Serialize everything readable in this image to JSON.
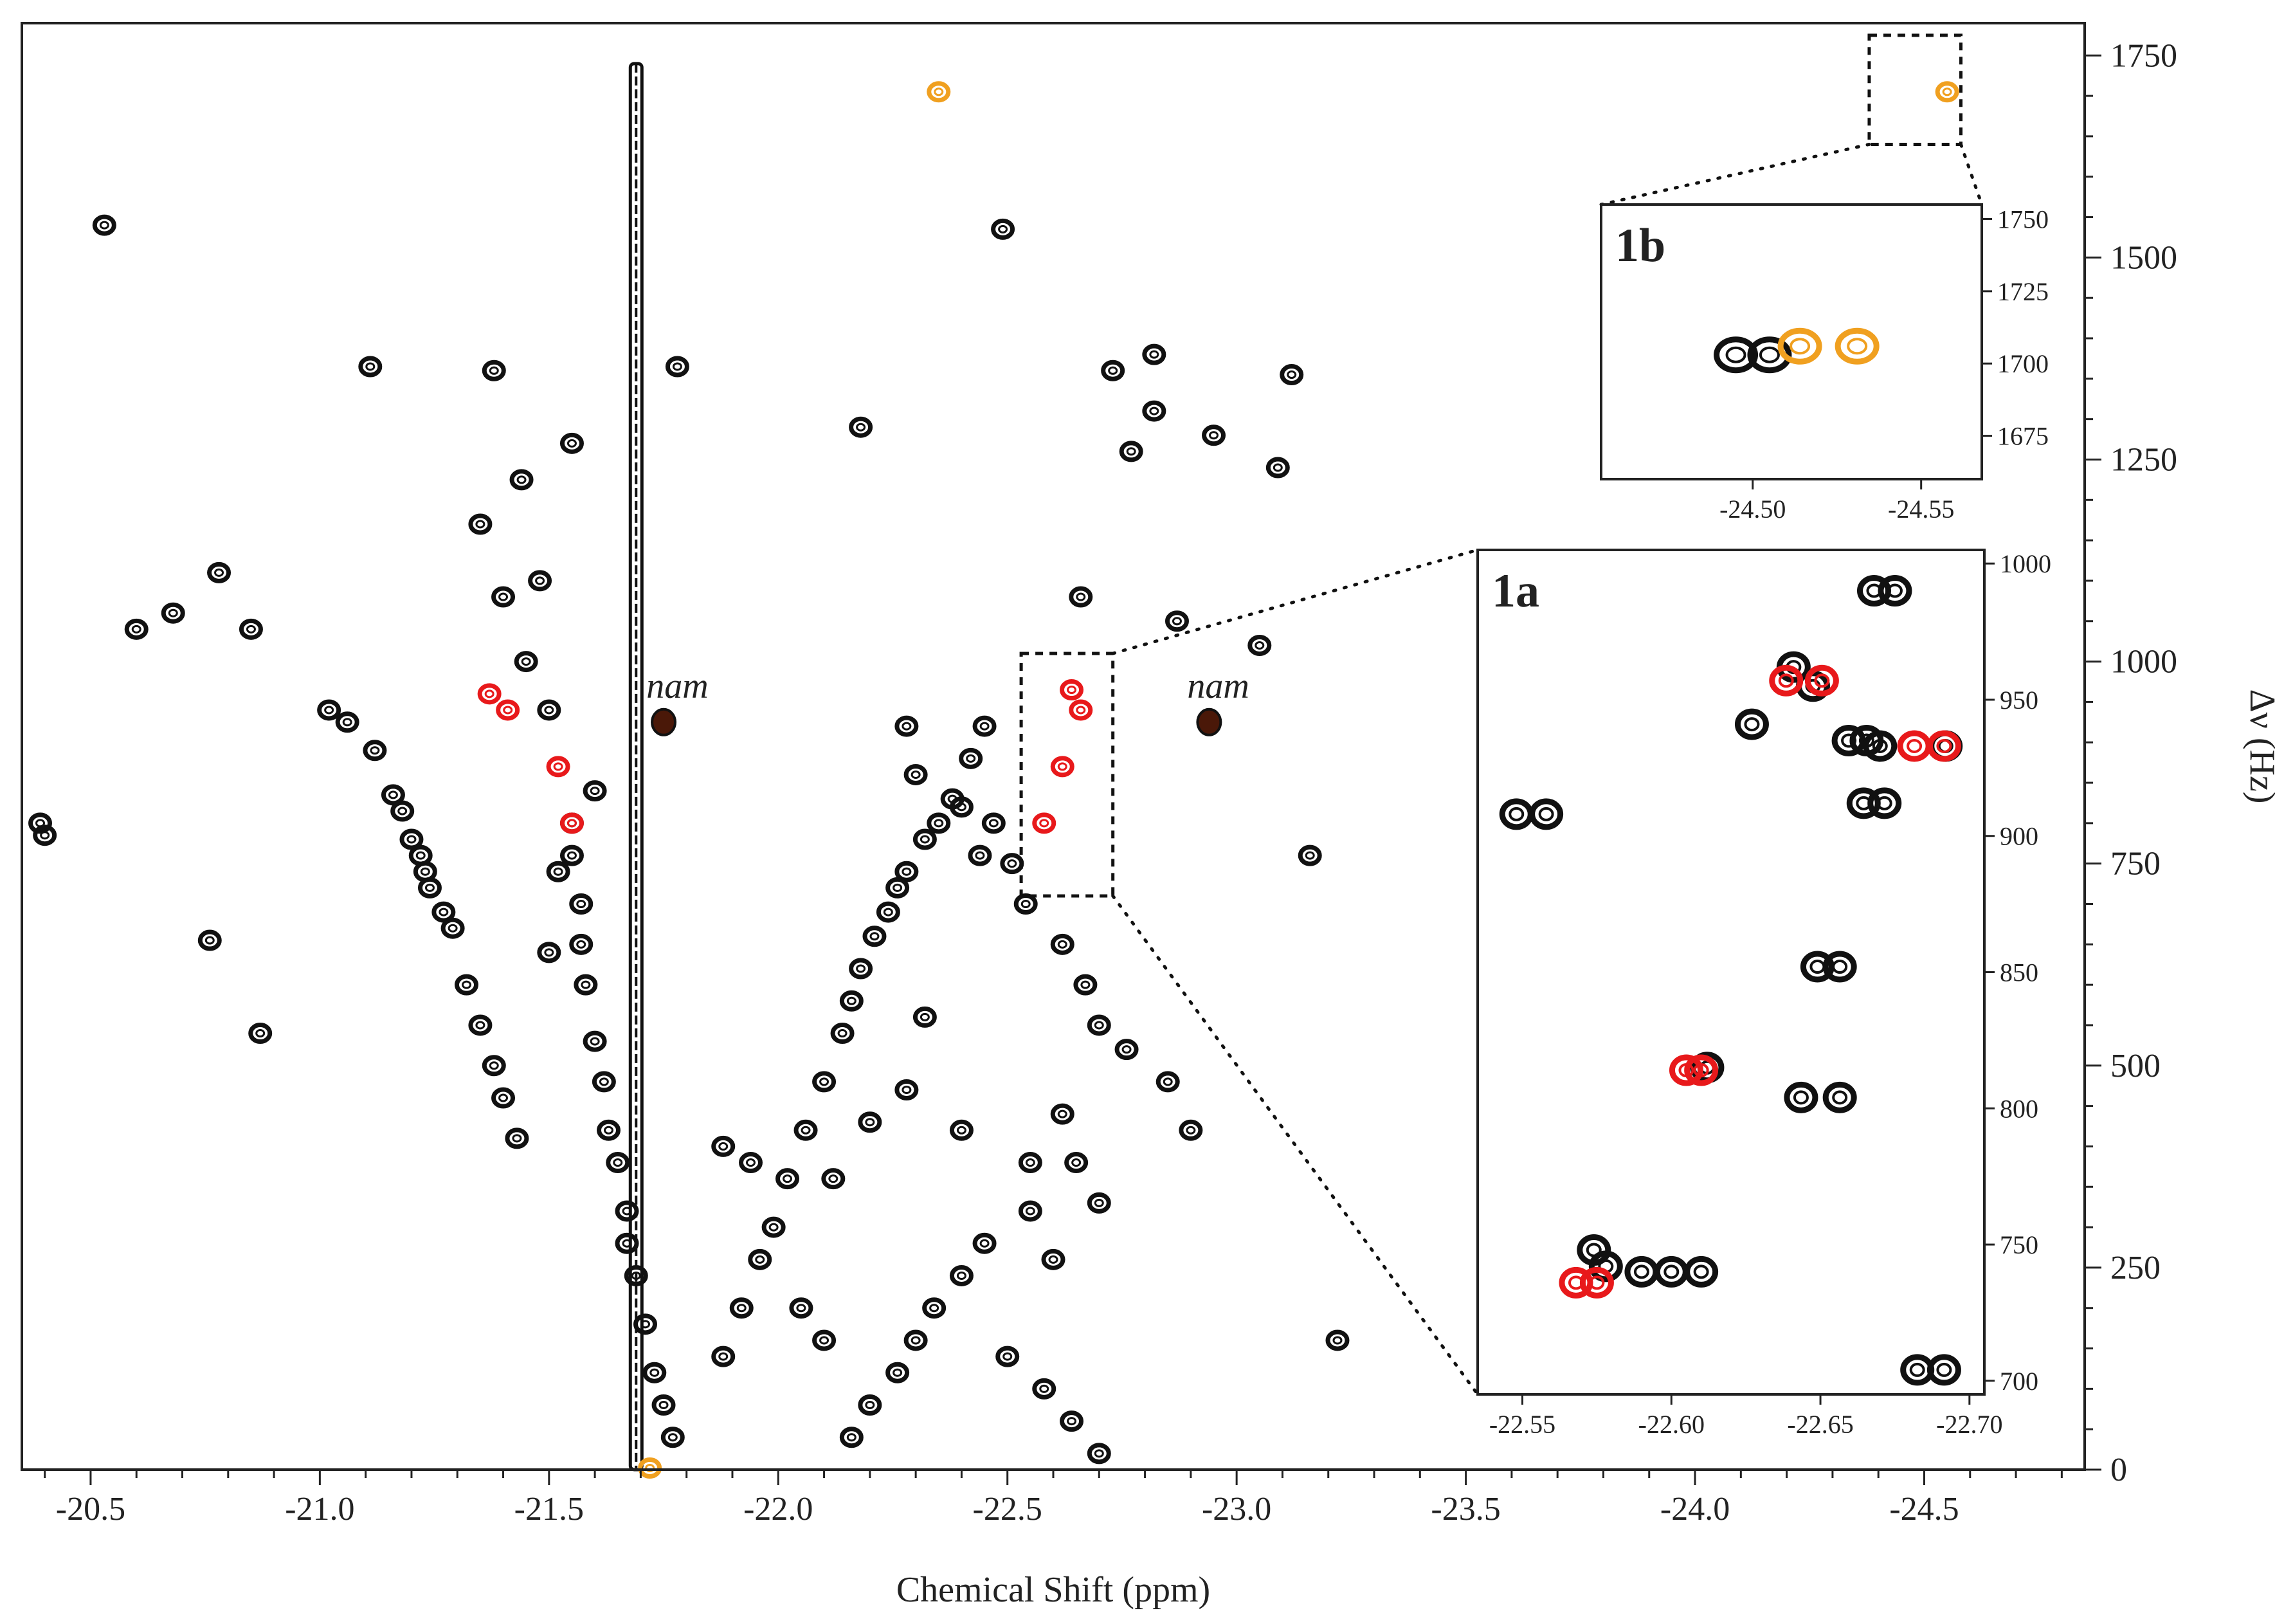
{
  "chart_data": {
    "type": "scatter",
    "subtype": "2D NMR contour map",
    "xlabel": "Chemical Shift (ppm)",
    "ylabel": "Δν (Hz)",
    "xlim": [
      -20.35,
      -24.85
    ],
    "ylim": [
      0,
      1790
    ],
    "xticks": [
      -20.5,
      -21.0,
      -21.5,
      -22.0,
      -22.5,
      -23.0,
      -23.5,
      -24.0,
      -24.5
    ],
    "xtick_labels": [
      "-20.5",
      "-21.0",
      "-21.5",
      "-22.0",
      "-22.5",
      "-23.0",
      "-23.5",
      "-24.0",
      "-24.5"
    ],
    "yticks": [
      0,
      250,
      500,
      750,
      1000,
      1250,
      1500,
      1750
    ],
    "ytick_labels": [
      "0",
      "250",
      "500",
      "750",
      "1000",
      "1250",
      "1500",
      "1750"
    ],
    "colors": {
      "axis": "#222222",
      "peak": "#111111",
      "highlight_red": "#e8191b",
      "highlight_orange": "#f0a020"
    },
    "annotations": [
      {
        "text": "nam",
        "x": -21.78,
        "y": 955
      },
      {
        "text": "nam",
        "x": -22.96,
        "y": 955
      }
    ],
    "ridge": {
      "x": -21.69,
      "y_from": 0,
      "y_to": 1740
    },
    "zoom_boxes": [
      {
        "target": "1a",
        "x": [
          -22.53,
          -22.73
        ],
        "y": [
          710,
          1010
        ]
      },
      {
        "target": "1b",
        "x": [
          -24.38,
          -24.58
        ],
        "y": [
          1640,
          1775
        ]
      }
    ],
    "series": [
      {
        "name": "peaks",
        "color": "#111111",
        "points": [
          [
            -20.53,
            1540
          ],
          [
            -21.11,
            1365
          ],
          [
            -21.38,
            1360
          ],
          [
            -21.78,
            1365
          ],
          [
            -22.49,
            1535
          ],
          [
            -22.73,
            1360
          ],
          [
            -23.09,
            1240
          ],
          [
            -21.44,
            1225
          ],
          [
            -20.39,
            800
          ],
          [
            -20.4,
            785
          ],
          [
            -20.76,
            655
          ],
          [
            -20.87,
            540
          ],
          [
            -21.02,
            940
          ],
          [
            -21.06,
            925
          ],
          [
            -21.12,
            890
          ],
          [
            -21.16,
            835
          ],
          [
            -21.18,
            815
          ],
          [
            -21.2,
            780
          ],
          [
            -21.22,
            760
          ],
          [
            -21.23,
            740
          ],
          [
            -21.24,
            720
          ],
          [
            -21.27,
            690
          ],
          [
            -21.29,
            670
          ],
          [
            -21.32,
            600
          ],
          [
            -21.35,
            550
          ],
          [
            -21.38,
            500
          ],
          [
            -21.4,
            460
          ],
          [
            -21.43,
            410
          ],
          [
            -21.45,
            1000
          ],
          [
            -21.5,
            940
          ],
          [
            -21.55,
            800
          ],
          [
            -21.55,
            760
          ],
          [
            -21.57,
            700
          ],
          [
            -21.57,
            650
          ],
          [
            -21.58,
            600
          ],
          [
            -21.6,
            530
          ],
          [
            -21.62,
            480
          ],
          [
            -21.63,
            420
          ],
          [
            -21.65,
            380
          ],
          [
            -21.67,
            320
          ],
          [
            -21.67,
            280
          ],
          [
            -21.69,
            240
          ],
          [
            -21.71,
            180
          ],
          [
            -21.73,
            120
          ],
          [
            -21.75,
            80
          ],
          [
            -21.77,
            40
          ],
          [
            -22.45,
            920
          ],
          [
            -22.42,
            880
          ],
          [
            -22.38,
            830
          ],
          [
            -22.35,
            800
          ],
          [
            -22.32,
            780
          ],
          [
            -22.28,
            740
          ],
          [
            -22.26,
            720
          ],
          [
            -22.24,
            690
          ],
          [
            -22.21,
            660
          ],
          [
            -22.18,
            620
          ],
          [
            -22.16,
            580
          ],
          [
            -22.14,
            540
          ],
          [
            -22.1,
            480
          ],
          [
            -22.06,
            420
          ],
          [
            -22.02,
            360
          ],
          [
            -21.99,
            300
          ],
          [
            -21.96,
            260
          ],
          [
            -21.92,
            200
          ],
          [
            -21.88,
            140
          ],
          [
            -22.28,
            920
          ],
          [
            -22.3,
            860
          ],
          [
            -22.4,
            820
          ],
          [
            -22.47,
            800
          ],
          [
            -22.44,
            760
          ],
          [
            -22.51,
            750
          ],
          [
            -22.54,
            700
          ],
          [
            -22.62,
            650
          ],
          [
            -22.67,
            600
          ],
          [
            -22.7,
            550
          ],
          [
            -22.76,
            520
          ],
          [
            -22.85,
            480
          ],
          [
            -22.9,
            420
          ],
          [
            -22.62,
            440
          ],
          [
            -22.65,
            380
          ],
          [
            -22.7,
            330
          ],
          [
            -22.55,
            320
          ],
          [
            -22.6,
            260
          ],
          [
            -22.45,
            280
          ],
          [
            -22.4,
            240
          ],
          [
            -22.34,
            200
          ],
          [
            -22.3,
            160
          ],
          [
            -22.26,
            120
          ],
          [
            -22.2,
            80
          ],
          [
            -22.16,
            40
          ],
          [
            -22.5,
            140
          ],
          [
            -22.58,
            100
          ],
          [
            -22.64,
            60
          ],
          [
            -22.7,
            20
          ],
          [
            -21.88,
            400
          ],
          [
            -21.94,
            380
          ],
          [
            -22.12,
            360
          ],
          [
            -22.2,
            430
          ],
          [
            -22.28,
            470
          ],
          [
            -22.05,
            200
          ],
          [
            -22.1,
            160
          ],
          [
            -22.4,
            420
          ],
          [
            -22.55,
            380
          ],
          [
            -22.32,
            560
          ],
          [
            -21.5,
            640
          ],
          [
            -21.52,
            740
          ],
          [
            -21.6,
            840
          ],
          [
            -21.48,
            1100
          ],
          [
            -21.55,
            1270
          ],
          [
            -22.18,
            1290
          ],
          [
            -22.87,
            1050
          ],
          [
            -23.05,
            1020
          ],
          [
            -22.77,
            1260
          ],
          [
            -22.82,
            1310
          ],
          [
            -23.12,
            1355
          ],
          [
            -23.16,
            760
          ],
          [
            -23.22,
            160
          ],
          [
            -22.95,
            1280
          ],
          [
            -22.66,
            1080
          ],
          [
            -22.82,
            1380
          ],
          [
            -20.6,
            1040
          ],
          [
            -20.68,
            1060
          ],
          [
            -20.78,
            1110
          ],
          [
            -20.85,
            1040
          ],
          [
            -21.4,
            1080
          ],
          [
            -21.35,
            1170
          ]
        ]
      },
      {
        "name": "peaks (red)",
        "color": "#e8191b",
        "points": [
          [
            -21.37,
            960
          ],
          [
            -21.41,
            940
          ],
          [
            -21.52,
            870
          ],
          [
            -21.55,
            800
          ],
          [
            -22.64,
            965
          ],
          [
            -22.66,
            940
          ],
          [
            -22.62,
            870
          ],
          [
            -22.58,
            800
          ]
        ]
      },
      {
        "name": "peaks (orange)",
        "color": "#f0a020",
        "points": [
          [
            -22.35,
            1705
          ],
          [
            -21.72,
            2
          ],
          [
            -24.55,
            1705
          ]
        ]
      },
      {
        "name": "nam peaks",
        "color": "#4a1808",
        "points": [
          [
            -21.75,
            925
          ],
          [
            -22.94,
            925
          ]
        ]
      }
    ],
    "insets": [
      {
        "label": "1a",
        "xlim": [
          -22.535,
          -22.705
        ],
        "ylim": [
          695,
          1005
        ],
        "xticks": [
          -22.55,
          -22.6,
          -22.65,
          -22.7
        ],
        "xtick_labels": [
          "-22.55",
          "-22.60",
          "-22.65",
          "-22.70"
        ],
        "yticks": [
          700,
          750,
          800,
          850,
          900,
          950,
          1000
        ],
        "ytick_labels": [
          "700",
          "750",
          "800",
          "850",
          "900",
          "950",
          "1000"
        ],
        "series": [
          {
            "name": "peaks",
            "color": "#111111",
            "points": [
              [
                -22.668,
                990
              ],
              [
                -22.675,
                990
              ],
              [
                -22.6475,
                955
              ],
              [
                -22.641,
                962
              ],
              [
                -22.627,
                941
              ],
              [
                -22.6655,
                935
              ],
              [
                -22.6595,
                935
              ],
              [
                -22.6715,
                912
              ],
              [
                -22.6645,
                912
              ],
              [
                -22.548,
                908
              ],
              [
                -22.558,
                908
              ],
              [
                -22.6565,
                852
              ],
              [
                -22.649,
                852
              ],
              [
                -22.612,
                815
              ],
              [
                -22.6435,
                804
              ],
              [
                -22.6565,
                804
              ],
              [
                -22.574,
                748
              ],
              [
                -22.578,
                742
              ],
              [
                -22.6,
                740
              ],
              [
                -22.59,
                740
              ],
              [
                -22.61,
                740
              ],
              [
                -22.6825,
                704
              ],
              [
                -22.6915,
                704
              ],
              [
                -22.692,
                933
              ],
              [
                -22.67,
                933
              ]
            ]
          },
          {
            "name": "peaks (red)",
            "color": "#e8191b",
            "points": [
              [
                -22.6385,
                957
              ],
              [
                -22.6505,
                957
              ],
              [
                -22.6815,
                933
              ],
              [
                -22.6915,
                933
              ],
              [
                -22.605,
                814
              ],
              [
                -22.61,
                814
              ],
              [
                -22.575,
                736
              ],
              [
                -22.568,
                736
              ]
            ]
          }
        ]
      },
      {
        "label": "1b",
        "xlim": [
          -24.455,
          -24.568
        ],
        "ylim": [
          1660,
          1755
        ],
        "xticks": [
          -24.5,
          -24.55
        ],
        "xtick_labels": [
          "-24.50",
          "-24.55"
        ],
        "yticks": [
          1675,
          1700,
          1725,
          1750
        ],
        "ytick_labels": [
          "1675",
          "1700",
          "1725",
          "1750"
        ],
        "series": [
          {
            "name": "peaks",
            "color": "#111111",
            "points": [
              [
                -24.495,
                1703
              ],
              [
                -24.505,
                1703
              ]
            ]
          },
          {
            "name": "peaks (orange)",
            "color": "#f0a020",
            "points": [
              [
                -24.514,
                1706
              ],
              [
                -24.531,
                1706
              ]
            ]
          }
        ]
      }
    ]
  }
}
